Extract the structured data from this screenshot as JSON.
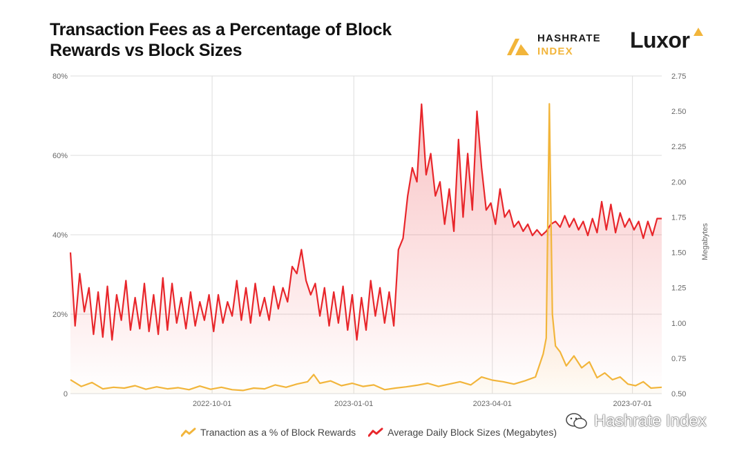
{
  "title_line1": "Transaction Fees as a Percentage of Block",
  "title_line2": "Rewards vs Block Sizes",
  "brand_hashrate": {
    "word1": "HASHRATE",
    "word2": "INDEX"
  },
  "brand_luxor": "Luxor",
  "watermark": "Hashrate Index",
  "colors": {
    "fees": "#f2b53b",
    "blocks": "#e8262b",
    "grid": "#dddddd",
    "text": "#666666"
  },
  "chart_data": {
    "type": "line",
    "x_ticks": [
      "2022-10-01",
      "2023-01-01",
      "2023-04-01",
      "2023-07-01"
    ],
    "x_range": [
      "2022-07-01",
      "2023-07-20"
    ],
    "left_axis": {
      "ticks": [
        "0",
        "20%",
        "40%",
        "60%",
        "80%"
      ],
      "ylim": [
        0,
        80
      ]
    },
    "right_axis": {
      "label": "Megabytes",
      "ticks": [
        "0.50",
        "0.75",
        "1.00",
        "1.25",
        "1.50",
        "1.75",
        "2.00",
        "2.25",
        "2.50",
        "2.75"
      ],
      "ylim": [
        0.5,
        2.75
      ]
    },
    "grid": true,
    "legend_position": "bottom",
    "series": [
      {
        "name": "Tranaction as a % of Block Rewards",
        "axis": "left",
        "points": [
          [
            "2022-07-01",
            3.5
          ],
          [
            "2022-07-08",
            1.8
          ],
          [
            "2022-07-15",
            2.8
          ],
          [
            "2022-07-22",
            1.2
          ],
          [
            "2022-07-29",
            1.6
          ],
          [
            "2022-08-05",
            1.4
          ],
          [
            "2022-08-12",
            2.0
          ],
          [
            "2022-08-19",
            1.1
          ],
          [
            "2022-08-26",
            1.7
          ],
          [
            "2022-09-02",
            1.2
          ],
          [
            "2022-09-09",
            1.5
          ],
          [
            "2022-09-16",
            1.0
          ],
          [
            "2022-09-23",
            1.9
          ],
          [
            "2022-09-30",
            1.1
          ],
          [
            "2022-10-07",
            1.6
          ],
          [
            "2022-10-14",
            1.0
          ],
          [
            "2022-10-21",
            0.8
          ],
          [
            "2022-10-28",
            1.4
          ],
          [
            "2022-11-04",
            1.2
          ],
          [
            "2022-11-11",
            2.2
          ],
          [
            "2022-11-18",
            1.6
          ],
          [
            "2022-11-25",
            2.4
          ],
          [
            "2022-12-02",
            3.0
          ],
          [
            "2022-12-06",
            4.8
          ],
          [
            "2022-12-10",
            2.6
          ],
          [
            "2022-12-17",
            3.2
          ],
          [
            "2022-12-24",
            2.0
          ],
          [
            "2022-12-31",
            2.6
          ],
          [
            "2023-01-07",
            1.8
          ],
          [
            "2023-01-14",
            2.2
          ],
          [
            "2023-01-21",
            1.0
          ],
          [
            "2023-01-28",
            1.4
          ],
          [
            "2023-02-04",
            1.7
          ],
          [
            "2023-02-11",
            2.1
          ],
          [
            "2023-02-18",
            2.6
          ],
          [
            "2023-02-25",
            1.8
          ],
          [
            "2023-03-04",
            2.4
          ],
          [
            "2023-03-11",
            3.0
          ],
          [
            "2023-03-18",
            2.2
          ],
          [
            "2023-03-25",
            4.2
          ],
          [
            "2023-04-01",
            3.4
          ],
          [
            "2023-04-08",
            3.0
          ],
          [
            "2023-04-15",
            2.4
          ],
          [
            "2023-04-22",
            3.2
          ],
          [
            "2023-04-29",
            4.2
          ],
          [
            "2023-05-04",
            10.0
          ],
          [
            "2023-05-06",
            14.0
          ],
          [
            "2023-05-08",
            73.0
          ],
          [
            "2023-05-10",
            20.0
          ],
          [
            "2023-05-12",
            12.0
          ],
          [
            "2023-05-15",
            10.5
          ],
          [
            "2023-05-19",
            7.0
          ],
          [
            "2023-05-24",
            9.5
          ],
          [
            "2023-05-29",
            6.5
          ],
          [
            "2023-06-03",
            8.0
          ],
          [
            "2023-06-08",
            4.0
          ],
          [
            "2023-06-13",
            5.2
          ],
          [
            "2023-06-18",
            3.5
          ],
          [
            "2023-06-23",
            4.2
          ],
          [
            "2023-06-28",
            2.4
          ],
          [
            "2023-07-03",
            2.0
          ],
          [
            "2023-07-08",
            3.0
          ],
          [
            "2023-07-13",
            1.4
          ],
          [
            "2023-07-20",
            1.6
          ]
        ]
      },
      {
        "name": "Average Daily Block Sizes (Megabytes)",
        "axis": "right",
        "points": [
          [
            "2022-07-01",
            1.5
          ],
          [
            "2022-07-04",
            0.98
          ],
          [
            "2022-07-07",
            1.35
          ],
          [
            "2022-07-10",
            1.08
          ],
          [
            "2022-07-13",
            1.25
          ],
          [
            "2022-07-16",
            0.92
          ],
          [
            "2022-07-19",
            1.22
          ],
          [
            "2022-07-22",
            0.9
          ],
          [
            "2022-07-25",
            1.26
          ],
          [
            "2022-07-28",
            0.88
          ],
          [
            "2022-07-31",
            1.2
          ],
          [
            "2022-08-03",
            1.02
          ],
          [
            "2022-08-06",
            1.3
          ],
          [
            "2022-08-09",
            0.95
          ],
          [
            "2022-08-12",
            1.18
          ],
          [
            "2022-08-15",
            0.96
          ],
          [
            "2022-08-18",
            1.28
          ],
          [
            "2022-08-21",
            0.94
          ],
          [
            "2022-08-24",
            1.2
          ],
          [
            "2022-08-27",
            0.92
          ],
          [
            "2022-08-30",
            1.32
          ],
          [
            "2022-09-02",
            0.95
          ],
          [
            "2022-09-05",
            1.28
          ],
          [
            "2022-09-08",
            1.0
          ],
          [
            "2022-09-11",
            1.18
          ],
          [
            "2022-09-14",
            0.96
          ],
          [
            "2022-09-17",
            1.22
          ],
          [
            "2022-09-20",
            0.98
          ],
          [
            "2022-09-23",
            1.15
          ],
          [
            "2022-09-26",
            1.02
          ],
          [
            "2022-09-29",
            1.2
          ],
          [
            "2022-10-02",
            0.94
          ],
          [
            "2022-10-05",
            1.2
          ],
          [
            "2022-10-08",
            1.0
          ],
          [
            "2022-10-11",
            1.15
          ],
          [
            "2022-10-14",
            1.05
          ],
          [
            "2022-10-17",
            1.3
          ],
          [
            "2022-10-20",
            1.02
          ],
          [
            "2022-10-23",
            1.25
          ],
          [
            "2022-10-26",
            1.0
          ],
          [
            "2022-10-29",
            1.28
          ],
          [
            "2022-11-01",
            1.05
          ],
          [
            "2022-11-04",
            1.18
          ],
          [
            "2022-11-07",
            1.02
          ],
          [
            "2022-11-10",
            1.26
          ],
          [
            "2022-11-13",
            1.1
          ],
          [
            "2022-11-16",
            1.25
          ],
          [
            "2022-11-19",
            1.15
          ],
          [
            "2022-11-22",
            1.4
          ],
          [
            "2022-11-25",
            1.35
          ],
          [
            "2022-11-28",
            1.52
          ],
          [
            "2022-12-01",
            1.3
          ],
          [
            "2022-12-04",
            1.2
          ],
          [
            "2022-12-07",
            1.28
          ],
          [
            "2022-12-10",
            1.05
          ],
          [
            "2022-12-13",
            1.25
          ],
          [
            "2022-12-16",
            0.98
          ],
          [
            "2022-12-19",
            1.22
          ],
          [
            "2022-12-22",
            1.0
          ],
          [
            "2022-12-25",
            1.26
          ],
          [
            "2022-12-28",
            0.95
          ],
          [
            "2022-12-31",
            1.2
          ],
          [
            "2023-01-03",
            0.88
          ],
          [
            "2023-01-06",
            1.18
          ],
          [
            "2023-01-09",
            0.95
          ],
          [
            "2023-01-12",
            1.3
          ],
          [
            "2023-01-15",
            1.05
          ],
          [
            "2023-01-18",
            1.25
          ],
          [
            "2023-01-21",
            1.0
          ],
          [
            "2023-01-24",
            1.22
          ],
          [
            "2023-01-27",
            0.98
          ],
          [
            "2023-01-30",
            1.52
          ],
          [
            "2023-02-02",
            1.6
          ],
          [
            "2023-02-05",
            1.9
          ],
          [
            "2023-02-08",
            2.1
          ],
          [
            "2023-02-11",
            2.0
          ],
          [
            "2023-02-14",
            2.55
          ],
          [
            "2023-02-17",
            2.05
          ],
          [
            "2023-02-20",
            2.2
          ],
          [
            "2023-02-23",
            1.9
          ],
          [
            "2023-02-26",
            2.0
          ],
          [
            "2023-03-01",
            1.7
          ],
          [
            "2023-03-04",
            1.95
          ],
          [
            "2023-03-07",
            1.65
          ],
          [
            "2023-03-10",
            2.3
          ],
          [
            "2023-03-13",
            1.75
          ],
          [
            "2023-03-16",
            2.2
          ],
          [
            "2023-03-19",
            1.8
          ],
          [
            "2023-03-22",
            2.5
          ],
          [
            "2023-03-25",
            2.1
          ],
          [
            "2023-03-28",
            1.8
          ],
          [
            "2023-03-31",
            1.85
          ],
          [
            "2023-04-03",
            1.7
          ],
          [
            "2023-04-06",
            1.95
          ],
          [
            "2023-04-09",
            1.75
          ],
          [
            "2023-04-12",
            1.8
          ],
          [
            "2023-04-15",
            1.68
          ],
          [
            "2023-04-18",
            1.72
          ],
          [
            "2023-04-21",
            1.65
          ],
          [
            "2023-04-24",
            1.7
          ],
          [
            "2023-04-27",
            1.62
          ],
          [
            "2023-04-30",
            1.66
          ],
          [
            "2023-05-03",
            1.62
          ],
          [
            "2023-05-06",
            1.65
          ],
          [
            "2023-05-09",
            1.7
          ],
          [
            "2023-05-12",
            1.72
          ],
          [
            "2023-05-15",
            1.68
          ],
          [
            "2023-05-18",
            1.76
          ],
          [
            "2023-05-21",
            1.68
          ],
          [
            "2023-05-24",
            1.74
          ],
          [
            "2023-05-27",
            1.66
          ],
          [
            "2023-05-30",
            1.72
          ],
          [
            "2023-06-02",
            1.62
          ],
          [
            "2023-06-05",
            1.74
          ],
          [
            "2023-06-08",
            1.64
          ],
          [
            "2023-06-11",
            1.86
          ],
          [
            "2023-06-14",
            1.66
          ],
          [
            "2023-06-17",
            1.84
          ],
          [
            "2023-06-20",
            1.64
          ],
          [
            "2023-06-23",
            1.78
          ],
          [
            "2023-06-26",
            1.68
          ],
          [
            "2023-06-29",
            1.74
          ],
          [
            "2023-07-02",
            1.66
          ],
          [
            "2023-07-05",
            1.72
          ],
          [
            "2023-07-08",
            1.6
          ],
          [
            "2023-07-11",
            1.72
          ],
          [
            "2023-07-14",
            1.62
          ],
          [
            "2023-07-17",
            1.74
          ],
          [
            "2023-07-20",
            1.74
          ]
        ]
      }
    ]
  }
}
